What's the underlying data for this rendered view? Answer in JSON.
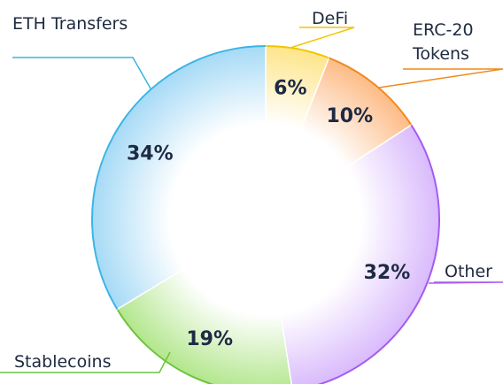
{
  "chart_data": {
    "type": "pie",
    "donut": true,
    "categories": [
      "DeFi",
      "ERC-20 Tokens",
      "Other",
      "Stablecoins",
      "ETH Transfers"
    ],
    "values": [
      6,
      10,
      32,
      19,
      34
    ],
    "value_labels": [
      "6%",
      "10%",
      "32%",
      "19%",
      "34%"
    ],
    "colors": [
      "#f2c500",
      "#f08a1c",
      "#a55cf0",
      "#6cc43c",
      "#3ab4e4"
    ],
    "fills": [
      "#fde58a",
      "#fdbb86",
      "#d9bafc",
      "#b2e68c",
      "#a6daf6"
    ]
  }
}
